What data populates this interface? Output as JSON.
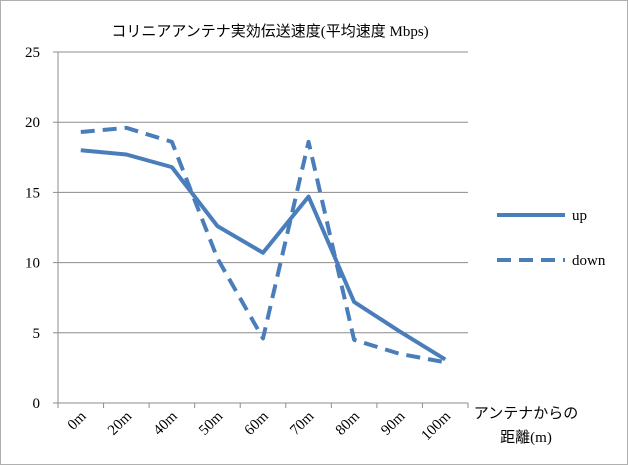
{
  "chart_data": {
    "type": "line",
    "title": "コリニアアンテナ実効伝送速度(平均速度 Mbps)",
    "x_label": "アンテナからの距離(m)",
    "categories": [
      "0m",
      "20m",
      "40m",
      "50m",
      "60m",
      "70m",
      "80m",
      "90m",
      "100m"
    ],
    "series": [
      {
        "name": "up",
        "color": "#4a7ebb",
        "dash": false,
        "values": [
          18.0,
          17.7,
          16.8,
          12.6,
          10.7,
          14.7,
          7.2,
          5.1,
          3.1
        ]
      },
      {
        "name": "down",
        "color": "#4a7ebb",
        "dash": true,
        "values": [
          19.3,
          19.6,
          18.6,
          10.3,
          4.6,
          18.6,
          4.5,
          3.5,
          2.9
        ]
      }
    ],
    "ylim": [
      0,
      25
    ],
    "yticks": [
      0,
      5,
      10,
      15,
      20,
      25
    ],
    "grid": true,
    "legend": "right"
  }
}
